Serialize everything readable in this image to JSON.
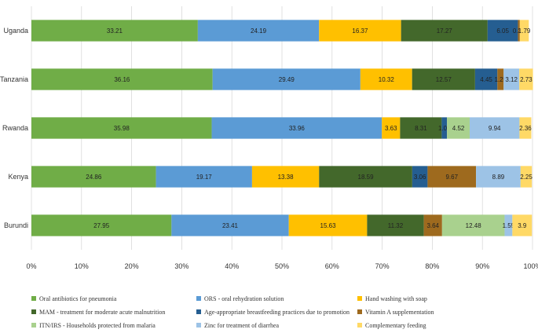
{
  "chart_data": {
    "type": "bar",
    "orientation": "horizontal",
    "stacked": true,
    "categories": [
      "Uganda",
      "Tanzania",
      "Rwanda",
      "Kenya",
      "Burundi"
    ],
    "xlim": [
      0,
      100
    ],
    "x_ticks": [
      "0%",
      "10%",
      "20%",
      "30%",
      "40%",
      "50%",
      "60%",
      "70%",
      "80%",
      "90%",
      "100%"
    ],
    "grid": true,
    "legend_position": "bottom",
    "series": [
      {
        "name": "Oral antibiotics for pneumonia",
        "color": "#70ad47",
        "values": [
          33.21,
          36.16,
          35.98,
          24.86,
          27.95
        ],
        "labels": [
          "33.21",
          "36.16",
          "35.98",
          "24.86",
          "27.95"
        ]
      },
      {
        "name": "ORS - oral rehydration solution",
        "color": "#5b9bd5",
        "values": [
          24.19,
          29.49,
          33.96,
          19.17,
          23.41
        ],
        "labels": [
          "24.19",
          "29.49",
          "33.96",
          "19.17",
          "23.41"
        ]
      },
      {
        "name": "Hand washing with soap",
        "color": "#ffc000",
        "values": [
          16.37,
          10.32,
          3.63,
          13.38,
          15.63
        ],
        "labels": [
          "16.37",
          "10.32",
          "3.63",
          "13.38",
          "15.63"
        ]
      },
      {
        "name": "MAM - treatment for moderate acute malnutrition",
        "color": "#43682b",
        "values": [
          17.27,
          12.57,
          8.31,
          18.59,
          11.32
        ],
        "labels": [
          "17.27",
          "12.57",
          "8.31",
          "18.59",
          "11.32"
        ]
      },
      {
        "name": "Age-appropriate breastfeeding practices due to promotion",
        "color": "#255e91",
        "values": [
          6.05,
          4.45,
          1.06,
          3.06,
          0
        ],
        "labels": [
          "6.05",
          "4.45",
          "1.06",
          "3.06",
          ""
        ]
      },
      {
        "name": "Vitamin A supplementation",
        "color": "#9e6a1e",
        "values": [
          0.38,
          1.25,
          0,
          9.67,
          3.64
        ],
        "labels": [
          "0.38",
          "1.25",
          "",
          "9.67",
          "3.64"
        ]
      },
      {
        "name": "ITN/IRS - Households protected from malaria",
        "color": "#a9d18e",
        "values": [
          0,
          0,
          4.52,
          0,
          12.48
        ],
        "labels": [
          "",
          "",
          "4.52",
          "",
          "12.48"
        ]
      },
      {
        "name": "Zinc for treatment of diarrhea",
        "color": "#9dc3e6",
        "values": [
          0,
          3.12,
          9.94,
          8.89,
          1.55
        ],
        "labels": [
          "",
          "3.12",
          "9.94",
          "8.89",
          "1.55"
        ]
      },
      {
        "name": "Complementary feeding",
        "color": "#ffd966",
        "values": [
          1.79,
          2.73,
          2.36,
          2.25,
          3.9
        ],
        "labels": [
          "1.79",
          "2.73",
          "2.36",
          "2.25",
          "3.9"
        ]
      }
    ]
  }
}
